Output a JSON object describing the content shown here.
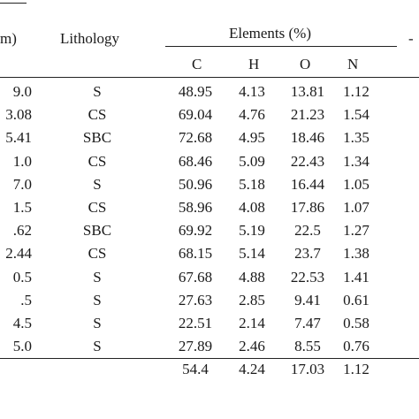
{
  "header": {
    "depth_fragment": "m)",
    "lithology": "Lithology",
    "elements_group": "Elements (%)",
    "columns": [
      "C",
      "H",
      "O",
      "N"
    ],
    "right_fragment": "-"
  },
  "rows": [
    {
      "depth": "9.0",
      "lithology": "S",
      "C": "48.95",
      "H": "4.13",
      "O": "13.81",
      "N": "1.12"
    },
    {
      "depth": "3.08",
      "lithology": "CS",
      "C": "69.04",
      "H": "4.76",
      "O": "21.23",
      "N": "1.54"
    },
    {
      "depth": "5.41",
      "lithology": "SBC",
      "C": "72.68",
      "H": "4.95",
      "O": "18.46",
      "N": "1.35"
    },
    {
      "depth": "1.0",
      "lithology": "CS",
      "C": "68.46",
      "H": "5.09",
      "O": "22.43",
      "N": "1.34"
    },
    {
      "depth": "7.0",
      "lithology": "S",
      "C": "50.96",
      "H": "5.18",
      "O": "16.44",
      "N": "1.05"
    },
    {
      "depth": "1.5",
      "lithology": "CS",
      "C": "58.96",
      "H": "4.08",
      "O": "17.86",
      "N": "1.07"
    },
    {
      "depth": ".62",
      "lithology": "SBC",
      "C": "69.92",
      "H": "5.19",
      "O": "22.5",
      "N": "1.27"
    },
    {
      "depth": "2.44",
      "lithology": "CS",
      "C": "68.15",
      "H": "5.14",
      "O": "23.7",
      "N": "1.38"
    },
    {
      "depth": "0.5",
      "lithology": "S",
      "C": "67.68",
      "H": "4.88",
      "O": "22.53",
      "N": "1.41"
    },
    {
      "depth": ".5",
      "lithology": "S",
      "C": "27.63",
      "H": "2.85",
      "O": "9.41",
      "N": "0.61"
    },
    {
      "depth": "4.5",
      "lithology": "S",
      "C": "22.51",
      "H": "2.14",
      "O": "7.47",
      "N": "0.58"
    },
    {
      "depth": "5.0",
      "lithology": "S",
      "C": "27.89",
      "H": "2.46",
      "O": "8.55",
      "N": "0.76"
    },
    {
      "depth": "",
      "lithology": "",
      "C": "54.4",
      "H": "4.24",
      "O": "17.03",
      "N": "1.12"
    }
  ]
}
